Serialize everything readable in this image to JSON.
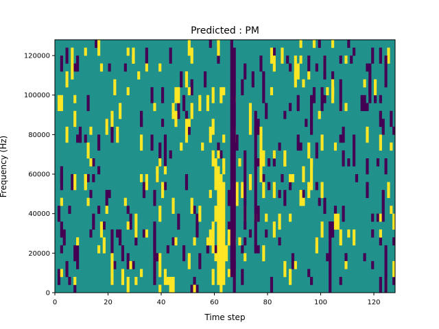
{
  "chart_data": {
    "type": "heatmap",
    "title": "Predicted : PM",
    "xlabel": "Time step",
    "ylabel": "Frequency (Hz)",
    "xlim": [
      0,
      128
    ],
    "ylim": [
      0,
      128000
    ],
    "grid": false,
    "legend": "none",
    "x_ticks": [
      0,
      20,
      40,
      60,
      80,
      100,
      120
    ],
    "x_tick_labels": [
      "0",
      "20",
      "40",
      "60",
      "80",
      "100",
      "120"
    ],
    "y_ticks": [
      0,
      20000,
      40000,
      60000,
      80000,
      100000,
      120000
    ],
    "y_tick_labels": [
      "0",
      "20000",
      "40000",
      "60000",
      "80000",
      "100000",
      "120000"
    ],
    "colors": {
      "background": "#21918c",
      "high": "#fde725",
      "low": "#440154"
    },
    "freq_bin_hz": 4000,
    "cell_value_legend": {
      "background": "mid value (teal)",
      "high": "high value (yellow)",
      "low": "low value (purple)"
    },
    "high_cells": [
      [
        61,
        1
      ],
      [
        61,
        2
      ],
      [
        61,
        3
      ],
      [
        61,
        4
      ],
      [
        61,
        5
      ],
      [
        61,
        6
      ],
      [
        61,
        7
      ],
      [
        61,
        8
      ],
      [
        61,
        9
      ],
      [
        61,
        10
      ],
      [
        61,
        11
      ],
      [
        61,
        12
      ],
      [
        61,
        13
      ],
      [
        61,
        14
      ],
      [
        61,
        15
      ],
      [
        62,
        0
      ],
      [
        62,
        1
      ],
      [
        62,
        2
      ],
      [
        62,
        3
      ],
      [
        62,
        4
      ],
      [
        62,
        5
      ],
      [
        62,
        6
      ],
      [
        62,
        7
      ],
      [
        62,
        8
      ],
      [
        62,
        9
      ],
      [
        62,
        10
      ],
      [
        62,
        11
      ],
      [
        62,
        12
      ],
      [
        62,
        13
      ],
      [
        62,
        14
      ],
      [
        63,
        1
      ],
      [
        63,
        2
      ],
      [
        63,
        3
      ],
      [
        63,
        4
      ],
      [
        63,
        5
      ],
      [
        63,
        6
      ],
      [
        63,
        7
      ],
      [
        63,
        8
      ],
      [
        63,
        9
      ],
      [
        63,
        10
      ],
      [
        63,
        11
      ],
      [
        63,
        12
      ],
      [
        63,
        13
      ],
      [
        60,
        9
      ],
      [
        60,
        10
      ],
      [
        60,
        14
      ],
      [
        60,
        15
      ],
      [
        60,
        16
      ],
      [
        59,
        16
      ],
      [
        59,
        17
      ],
      [
        30,
        7
      ],
      [
        30,
        8
      ],
      [
        30,
        9
      ],
      [
        73,
        20
      ],
      [
        73,
        21
      ],
      [
        73,
        22
      ],
      [
        73,
        23
      ],
      [
        77,
        14
      ],
      [
        77,
        15
      ],
      [
        77,
        16
      ],
      [
        77,
        17
      ],
      [
        77,
        18
      ],
      [
        77,
        19
      ],
      [
        77,
        20
      ],
      [
        43,
        0
      ],
      [
        44,
        0
      ],
      [
        43,
        1
      ],
      [
        44,
        1
      ],
      [
        105,
        8
      ],
      [
        106,
        8
      ],
      [
        105,
        9
      ],
      [
        106,
        9
      ]
    ],
    "low_cells": [
      [
        67,
        0
      ],
      [
        67,
        1
      ],
      [
        67,
        2
      ],
      [
        67,
        3
      ],
      [
        67,
        4
      ],
      [
        67,
        5
      ],
      [
        67,
        6
      ],
      [
        67,
        7
      ],
      [
        67,
        8
      ],
      [
        67,
        9
      ],
      [
        67,
        10
      ],
      [
        67,
        11
      ],
      [
        67,
        12
      ],
      [
        67,
        13
      ],
      [
        67,
        14
      ],
      [
        67,
        15
      ],
      [
        67,
        16
      ],
      [
        67,
        17
      ],
      [
        67,
        18
      ],
      [
        67,
        19
      ],
      [
        67,
        20
      ],
      [
        67,
        21
      ],
      [
        67,
        22
      ],
      [
        67,
        23
      ],
      [
        67,
        24
      ],
      [
        67,
        25
      ],
      [
        67,
        26
      ],
      [
        67,
        27
      ],
      [
        67,
        28
      ],
      [
        67,
        29
      ],
      [
        67,
        30
      ],
      [
        66,
        2
      ],
      [
        66,
        3
      ],
      [
        66,
        4
      ],
      [
        66,
        5
      ],
      [
        66,
        6
      ],
      [
        66,
        7
      ],
      [
        66,
        8
      ],
      [
        66,
        9
      ],
      [
        66,
        10
      ],
      [
        66,
        11
      ],
      [
        66,
        12
      ],
      [
        66,
        13
      ],
      [
        66,
        14
      ],
      [
        66,
        15
      ],
      [
        66,
        16
      ],
      [
        66,
        17
      ],
      [
        66,
        18
      ],
      [
        66,
        19
      ],
      [
        66,
        20
      ],
      [
        66,
        21
      ],
      [
        66,
        22
      ],
      [
        66,
        23
      ],
      [
        66,
        24
      ],
      [
        66,
        25
      ],
      [
        66,
        26
      ],
      [
        66,
        27
      ],
      [
        66,
        28
      ],
      [
        66,
        29
      ],
      [
        66,
        30
      ],
      [
        75,
        5
      ],
      [
        75,
        6
      ],
      [
        75,
        7
      ],
      [
        75,
        8
      ],
      [
        75,
        9
      ],
      [
        75,
        10
      ],
      [
        75,
        11
      ],
      [
        75,
        12
      ],
      [
        75,
        13
      ],
      [
        75,
        14
      ],
      [
        75,
        15
      ],
      [
        75,
        16
      ],
      [
        75,
        17
      ],
      [
        75,
        18
      ],
      [
        75,
        19
      ],
      [
        75,
        20
      ],
      [
        75,
        21
      ],
      [
        75,
        22
      ],
      [
        71,
        8
      ],
      [
        71,
        9
      ],
      [
        71,
        10
      ],
      [
        71,
        11
      ],
      [
        71,
        12
      ],
      [
        71,
        13
      ],
      [
        71,
        14
      ],
      [
        71,
        15
      ],
      [
        71,
        16
      ],
      [
        71,
        17
      ],
      [
        96,
        20
      ],
      [
        96,
        21
      ],
      [
        96,
        22
      ],
      [
        96,
        23
      ],
      [
        96,
        24
      ],
      [
        37,
        1
      ],
      [
        37,
        2
      ],
      [
        37,
        3
      ],
      [
        37,
        4
      ],
      [
        37,
        5
      ],
      [
        37,
        6
      ],
      [
        37,
        7
      ],
      [
        37,
        8
      ],
      [
        124,
        0
      ],
      [
        124,
        1
      ],
      [
        124,
        2
      ],
      [
        124,
        3
      ],
      [
        124,
        4
      ],
      [
        124,
        5
      ],
      [
        103,
        0
      ],
      [
        103,
        1
      ],
      [
        103,
        2
      ],
      [
        103,
        3
      ],
      [
        103,
        4
      ],
      [
        103,
        5
      ],
      [
        103,
        6
      ],
      [
        103,
        7
      ],
      [
        103,
        8
      ],
      [
        107,
        23
      ],
      [
        107,
        24
      ],
      [
        107,
        25
      ],
      [
        107,
        26
      ],
      [
        112,
        16
      ],
      [
        112,
        17
      ],
      [
        112,
        18
      ],
      [
        112,
        19
      ],
      [
        118,
        24
      ],
      [
        118,
        25
      ],
      [
        118,
        26
      ],
      [
        118,
        27
      ],
      [
        118,
        28
      ],
      [
        124,
        26
      ],
      [
        124,
        27
      ],
      [
        124,
        28
      ],
      [
        124,
        29
      ],
      [
        101,
        27
      ],
      [
        101,
        28
      ],
      [
        101,
        29
      ],
      [
        123,
        9
      ],
      [
        123,
        10
      ],
      [
        123,
        11
      ],
      [
        123,
        12
      ]
    ],
    "scatter_high_count": 190,
    "scatter_low_count": 210,
    "seed": 7
  }
}
